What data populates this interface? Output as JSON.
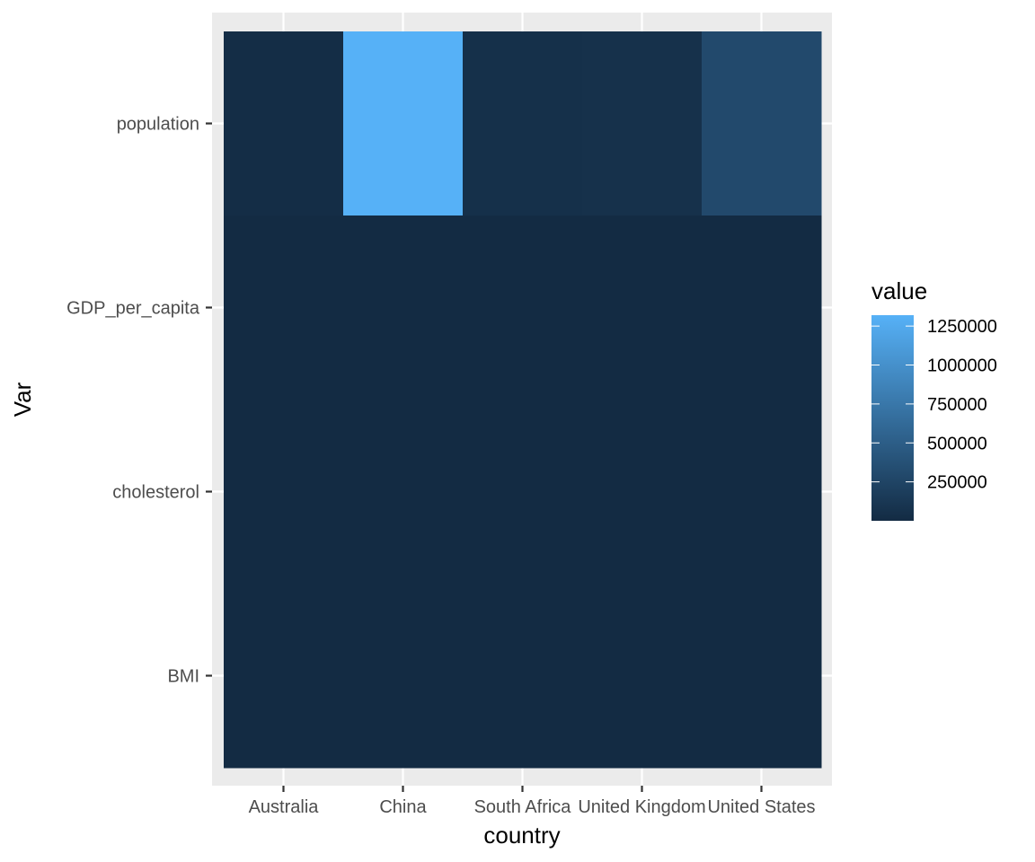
{
  "chart_data": {
    "type": "heatmap",
    "title": "",
    "xlabel": "country",
    "ylabel": "Var",
    "x_categories": [
      "Australia",
      "China",
      "South Africa",
      "United Kingdom",
      "United States"
    ],
    "y_categories": [
      "BMI",
      "cholesterol",
      "GDP_per_capita",
      "population"
    ],
    "cells": [
      {
        "x": "Australia",
        "y": "population",
        "value": 20000
      },
      {
        "x": "China",
        "y": "population",
        "value": 1320000
      },
      {
        "x": "South Africa",
        "y": "population",
        "value": 48000
      },
      {
        "x": "United Kingdom",
        "y": "population",
        "value": 61000
      },
      {
        "x": "United States",
        "y": "population",
        "value": 300000
      },
      {
        "x": "Australia",
        "y": "GDP_per_capita",
        "value": 35
      },
      {
        "x": "China",
        "y": "GDP_per_capita",
        "value": 5
      },
      {
        "x": "South Africa",
        "y": "GDP_per_capita",
        "value": 10
      },
      {
        "x": "United Kingdom",
        "y": "GDP_per_capita",
        "value": 35
      },
      {
        "x": "United States",
        "y": "GDP_per_capita",
        "value": 45
      },
      {
        "x": "Australia",
        "y": "cholesterol",
        "value": 5
      },
      {
        "x": "China",
        "y": "cholesterol",
        "value": 4.5
      },
      {
        "x": "South Africa",
        "y": "cholesterol",
        "value": 4.9
      },
      {
        "x": "United Kingdom",
        "y": "cholesterol",
        "value": 5.6
      },
      {
        "x": "United States",
        "y": "cholesterol",
        "value": 5.1
      },
      {
        "x": "Australia",
        "y": "BMI",
        "value": 27
      },
      {
        "x": "China",
        "y": "BMI",
        "value": 23
      },
      {
        "x": "South Africa",
        "y": "BMI",
        "value": 27
      },
      {
        "x": "United Kingdom",
        "y": "BMI",
        "value": 27
      },
      {
        "x": "United States",
        "y": "BMI",
        "value": 28
      }
    ],
    "color_scale": {
      "low": "#132B43",
      "high": "#56B1F7",
      "min": 0,
      "max": 1320000
    },
    "legend": {
      "title": "value",
      "breaks": [
        1250000,
        1000000,
        750000,
        500000,
        250000
      ],
      "labels": [
        "1250000",
        "1000000",
        "750000",
        "500000",
        "250000"
      ],
      "position": "right"
    },
    "grid": true
  }
}
